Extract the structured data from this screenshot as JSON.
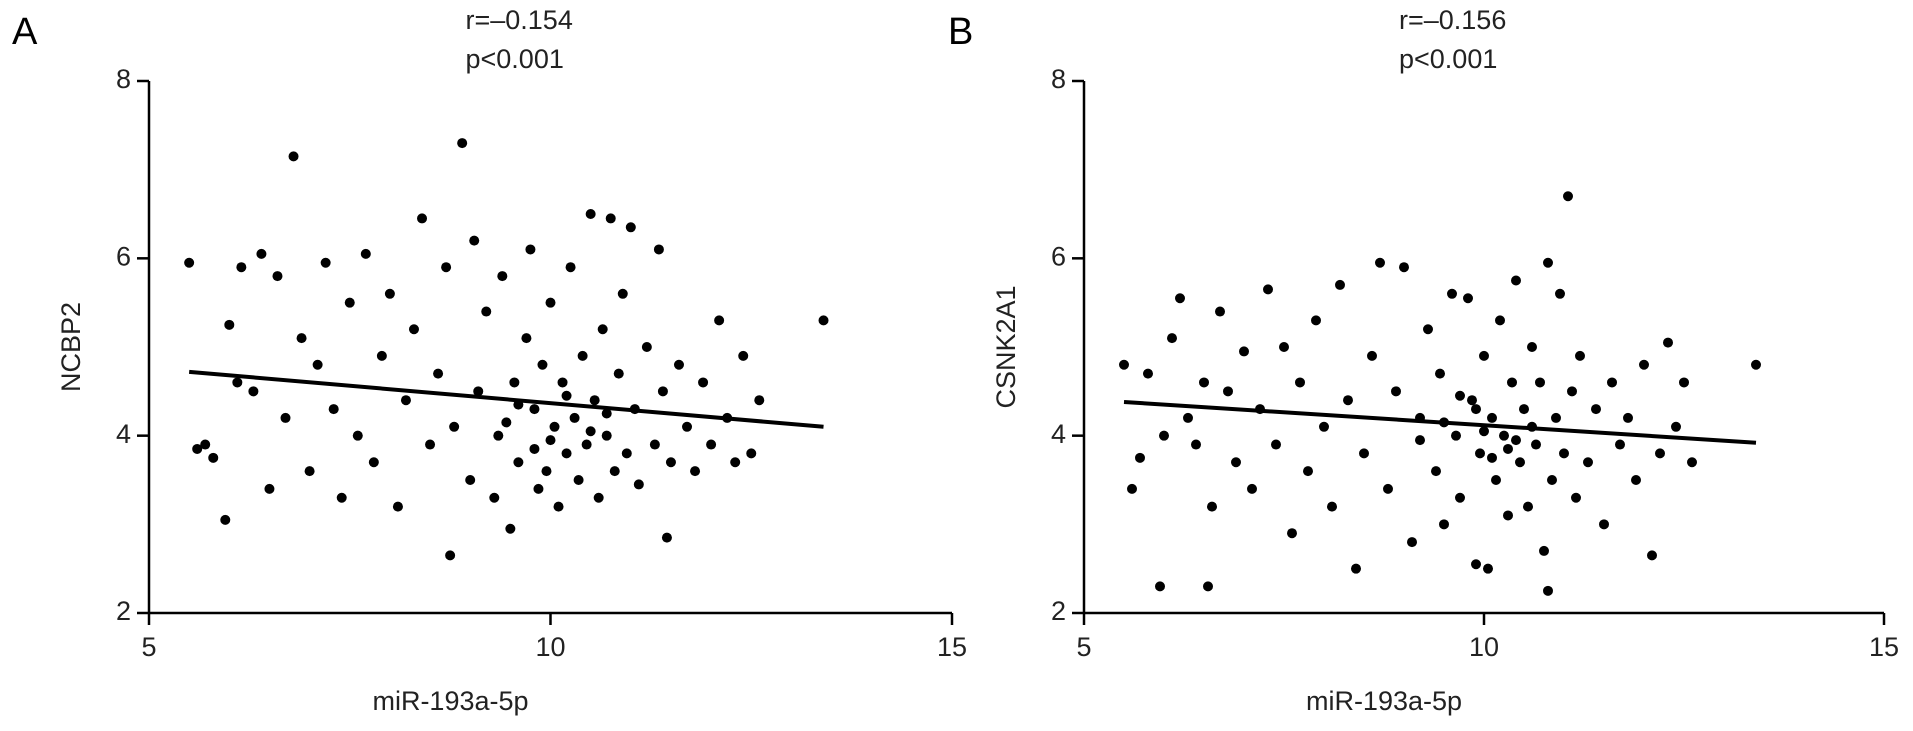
{
  "chart_data": [
    {
      "type": "scatter",
      "panel_label": "A",
      "annotations": [
        "r=–0.154",
        "p<0.001"
      ],
      "x_label": "miR-193a-5p",
      "y_label": "NCBP2",
      "color": "#000000",
      "xlim": [
        5,
        15
      ],
      "ylim": [
        2,
        8
      ],
      "xticks": [
        5,
        10,
        15
      ],
      "yticks": [
        2,
        4,
        6,
        8
      ],
      "x": [
        5.5,
        5.6,
        5.7,
        5.8,
        5.95,
        6.0,
        6.1,
        6.15,
        6.3,
        6.4,
        6.5,
        6.6,
        6.7,
        6.8,
        6.9,
        7.0,
        7.1,
        7.2,
        7.3,
        7.4,
        7.5,
        7.6,
        7.7,
        7.8,
        7.9,
        8.0,
        8.1,
        8.2,
        8.3,
        8.4,
        8.5,
        8.6,
        8.7,
        8.75,
        8.8,
        8.9,
        9.0,
        9.05,
        9.1,
        9.2,
        9.3,
        9.35,
        9.4,
        9.5,
        9.55,
        9.6,
        9.7,
        9.75,
        9.8,
        9.85,
        9.9,
        9.95,
        10.0,
        10.05,
        10.1,
        10.15,
        10.2,
        10.25,
        10.3,
        10.35,
        10.4,
        10.45,
        10.5,
        10.55,
        10.6,
        10.65,
        10.7,
        10.75,
        10.8,
        10.85,
        10.9,
        10.95,
        11.0,
        11.05,
        11.1,
        11.2,
        11.3,
        11.35,
        11.4,
        11.45,
        11.5,
        11.6,
        11.7,
        11.8,
        11.9,
        12.0,
        12.1,
        12.2,
        12.3,
        12.4,
        12.5,
        12.6,
        13.4,
        9.45,
        10.0,
        10.5,
        9.8,
        10.2,
        9.6,
        10.7
      ],
      "values": [
        5.95,
        3.85,
        3.9,
        3.75,
        3.05,
        5.25,
        4.6,
        5.9,
        4.5,
        6.05,
        3.4,
        5.8,
        4.2,
        7.15,
        5.1,
        3.6,
        4.8,
        5.95,
        4.3,
        3.3,
        5.5,
        4.0,
        6.05,
        3.7,
        4.9,
        5.6,
        3.2,
        4.4,
        5.2,
        6.45,
        3.9,
        4.7,
        5.9,
        2.65,
        4.1,
        7.3,
        3.5,
        6.2,
        4.5,
        5.4,
        3.3,
        4.0,
        5.8,
        2.95,
        4.6,
        3.7,
        5.1,
        6.1,
        4.3,
        3.4,
        4.8,
        3.6,
        5.5,
        4.1,
        3.2,
        4.6,
        3.8,
        5.9,
        4.2,
        3.5,
        4.9,
        3.9,
        6.5,
        4.4,
        3.3,
        5.2,
        4.0,
        6.45,
        3.6,
        4.7,
        5.6,
        3.8,
        6.35,
        4.3,
        3.45,
        5.0,
        3.9,
        6.1,
        4.5,
        2.85,
        3.7,
        4.8,
        4.1,
        3.6,
        4.6,
        3.9,
        5.3,
        4.2,
        3.7,
        4.9,
        3.8,
        4.4,
        5.3,
        4.15,
        3.95,
        4.05,
        3.85,
        4.45,
        4.35,
        4.25
      ],
      "trend_x": [
        5.5,
        13.4
      ],
      "trend_values": [
        4.72,
        4.1
      ]
    },
    {
      "type": "scatter",
      "panel_label": "B",
      "annotations": [
        "r=–0.156",
        "p<0.001"
      ],
      "x_label": "miR-193a-5p",
      "y_label": "CSNK2A1",
      "color": "#000000",
      "xlim": [
        5,
        15
      ],
      "ylim": [
        2,
        8
      ],
      "xticks": [
        5,
        10,
        15
      ],
      "yticks": [
        2,
        4,
        6,
        8
      ],
      "x": [
        5.5,
        5.6,
        5.7,
        5.8,
        5.95,
        6.0,
        6.1,
        6.2,
        6.3,
        6.4,
        6.5,
        6.55,
        6.6,
        6.7,
        6.8,
        6.9,
        7.0,
        7.1,
        7.2,
        7.3,
        7.4,
        7.5,
        7.6,
        7.7,
        7.8,
        7.9,
        8.0,
        8.1,
        8.2,
        8.3,
        8.4,
        8.5,
        8.6,
        8.7,
        8.8,
        8.9,
        9.0,
        9.1,
        9.2,
        9.3,
        9.4,
        9.45,
        9.5,
        9.6,
        9.65,
        9.7,
        9.8,
        9.85,
        9.9,
        9.95,
        10.0,
        10.05,
        10.1,
        10.15,
        10.2,
        10.25,
        10.3,
        10.35,
        10.4,
        10.45,
        10.5,
        10.55,
        10.6,
        10.65,
        10.7,
        10.75,
        10.8,
        10.85,
        10.9,
        10.95,
        11.0,
        11.05,
        11.1,
        11.15,
        11.2,
        11.3,
        11.4,
        11.5,
        11.6,
        11.7,
        11.8,
        11.9,
        12.0,
        12.1,
        12.2,
        12.3,
        12.4,
        12.5,
        12.6,
        13.4,
        10.8,
        9.5,
        10.0,
        10.3,
        9.7,
        10.6,
        9.2,
        10.1,
        9.9,
        10.4
      ],
      "values": [
        4.8,
        3.4,
        3.75,
        4.7,
        2.3,
        4.0,
        5.1,
        5.55,
        4.2,
        3.9,
        4.6,
        2.3,
        3.2,
        5.4,
        4.5,
        3.7,
        4.95,
        3.4,
        4.3,
        5.65,
        3.9,
        5.0,
        2.9,
        4.6,
        3.6,
        5.3,
        4.1,
        3.2,
        5.7,
        4.4,
        2.5,
        3.8,
        4.9,
        5.95,
        3.4,
        4.5,
        5.9,
        2.8,
        4.2,
        5.2,
        3.6,
        4.7,
        3.0,
        5.6,
        4.0,
        3.3,
        5.55,
        4.4,
        2.55,
        3.8,
        4.9,
        2.5,
        4.2,
        3.5,
        5.3,
        4.0,
        3.1,
        4.6,
        5.75,
        3.7,
        4.3,
        3.2,
        5.0,
        3.9,
        4.6,
        2.7,
        5.95,
        3.5,
        4.2,
        5.6,
        3.8,
        6.7,
        4.5,
        3.3,
        4.9,
        3.7,
        4.3,
        3.0,
        4.6,
        3.9,
        4.2,
        3.5,
        4.8,
        2.65,
        3.8,
        5.05,
        4.1,
        4.6,
        3.7,
        4.8,
        2.25,
        4.15,
        4.05,
        3.85,
        4.45,
        4.1,
        3.95,
        3.75,
        4.3,
        3.95
      ],
      "trend_x": [
        5.5,
        13.4
      ],
      "trend_values": [
        4.38,
        3.92
      ]
    }
  ]
}
